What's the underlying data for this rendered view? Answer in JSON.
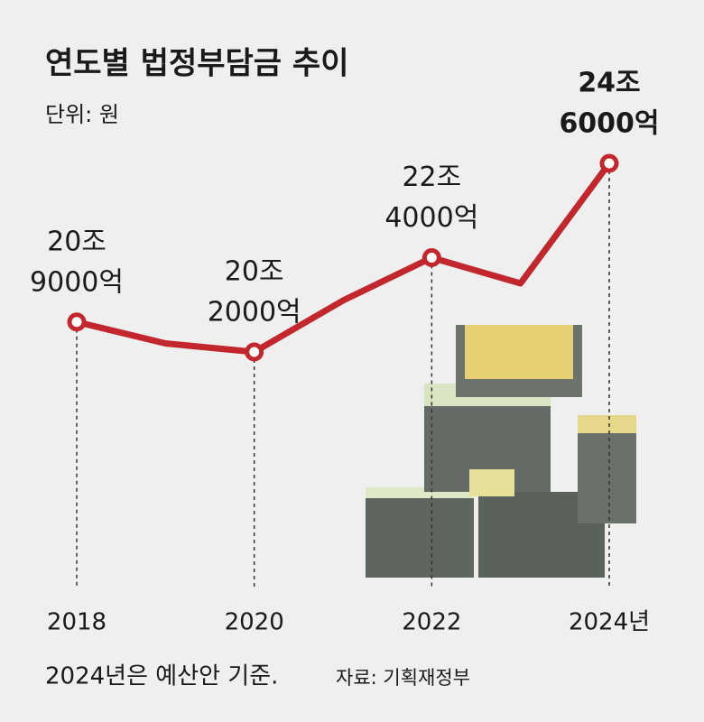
{
  "chart_data": {
    "type": "line",
    "title": "연도별 법정부담금 추이",
    "subtitle": "단위: 원",
    "categories": [
      "2018",
      null,
      "2020",
      null,
      "2022",
      null,
      "2024년"
    ],
    "values": [
      20.9,
      20.4,
      20.2,
      21.4,
      22.4,
      21.8,
      24.6
    ],
    "value_labels": [
      [
        "20조",
        "9000억"
      ],
      null,
      [
        "20조",
        "2000억"
      ],
      null,
      [
        "22조",
        "4000억"
      ],
      null,
      [
        "24조",
        "6000억"
      ]
    ],
    "color": "#c1272d",
    "note": "2024년은 예산안 기준.",
    "source": "자료: 기획재정부"
  }
}
